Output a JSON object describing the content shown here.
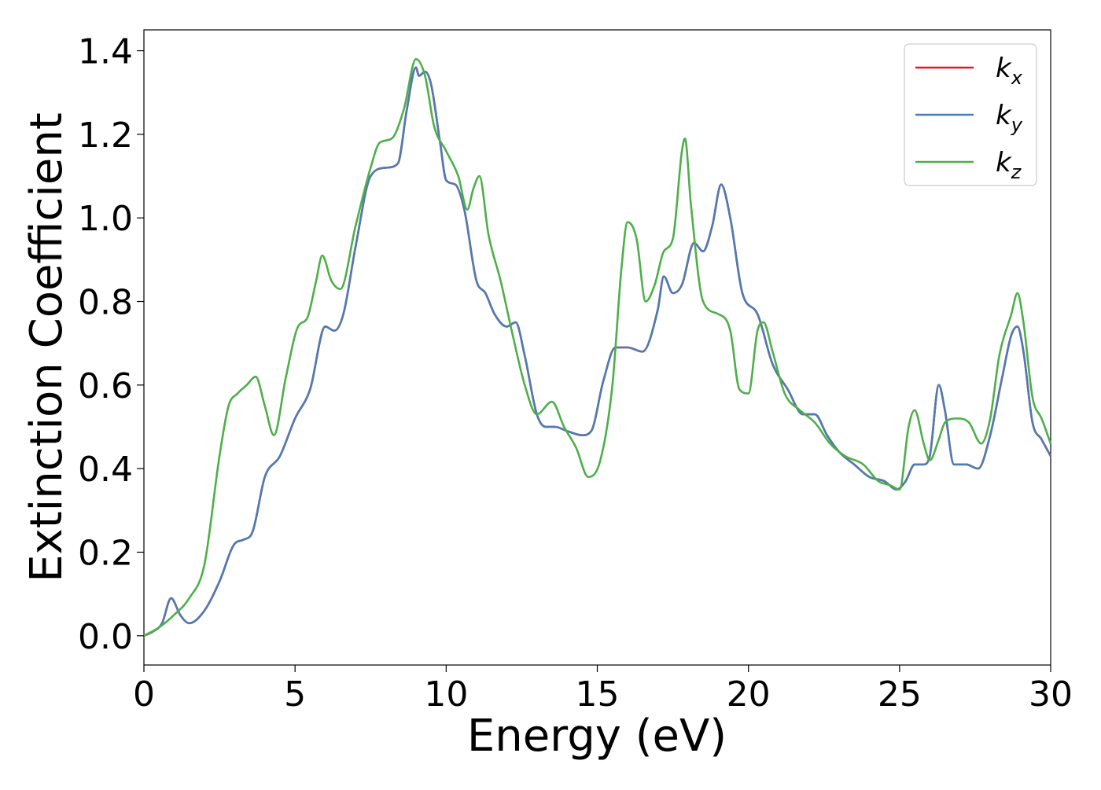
{
  "chart_data": {
    "type": "line",
    "xlabel": "Energy (eV)",
    "ylabel": "Extinction Coefficient",
    "xlim": [
      0,
      30
    ],
    "ylim": [
      -0.07,
      1.45
    ],
    "xticks": [
      0,
      5,
      10,
      15,
      20,
      25,
      30
    ],
    "xtick_labels": [
      "0",
      "5",
      "10",
      "15",
      "20",
      "25",
      "30"
    ],
    "yticks": [
      0.0,
      0.2,
      0.4,
      0.6,
      0.8,
      1.0,
      1.2,
      1.4
    ],
    "ytick_labels": [
      "0.0",
      "0.2",
      "0.4",
      "0.6",
      "0.8",
      "1.0",
      "1.2",
      "1.4"
    ],
    "grid": false,
    "legend_position": "top-right",
    "series": [
      {
        "name": "k_x",
        "legend_base": "k",
        "legend_sub": "x",
        "color": "#e41a1c",
        "x": [
          0,
          0.3,
          0.6,
          0.9,
          1.2,
          1.5,
          2.0,
          2.5,
          3.0,
          3.3,
          3.6,
          4.0,
          4.5,
          5.0,
          5.5,
          6.0,
          6.3,
          6.6,
          7.0,
          7.5,
          8.0,
          8.4,
          8.7,
          9.0,
          9.1,
          9.3,
          9.5,
          9.8,
          10.0,
          10.3,
          10.6,
          11.0,
          11.3,
          11.6,
          12.0,
          12.3,
          12.6,
          13.0,
          13.3,
          13.6,
          14.0,
          14.5,
          14.8,
          15.2,
          15.6,
          16.0,
          16.5,
          17.0,
          17.2,
          17.5,
          17.8,
          18.2,
          18.5,
          18.8,
          19.1,
          19.4,
          19.8,
          20.3,
          20.8,
          21.3,
          21.8,
          22.2,
          22.6,
          23.0,
          23.5,
          24.0,
          24.5,
          24.9,
          25.2,
          25.5,
          25.8,
          26.0,
          26.3,
          26.5,
          26.8,
          27.2,
          27.6,
          28.0,
          28.4,
          28.7,
          28.9,
          29.1,
          29.4,
          29.7,
          30.0
        ],
        "y": [
          0,
          0.01,
          0.03,
          0.09,
          0.05,
          0.03,
          0.06,
          0.13,
          0.22,
          0.23,
          0.25,
          0.38,
          0.43,
          0.52,
          0.59,
          0.74,
          0.73,
          0.77,
          0.93,
          1.1,
          1.12,
          1.13,
          1.26,
          1.36,
          1.34,
          1.35,
          1.32,
          1.18,
          1.09,
          1.08,
          1.02,
          0.85,
          0.82,
          0.77,
          0.74,
          0.75,
          0.67,
          0.53,
          0.5,
          0.5,
          0.49,
          0.48,
          0.49,
          0.61,
          0.69,
          0.69,
          0.68,
          0.78,
          0.86,
          0.82,
          0.84,
          0.94,
          0.92,
          0.98,
          1.08,
          1.0,
          0.82,
          0.77,
          0.65,
          0.59,
          0.53,
          0.53,
          0.48,
          0.44,
          0.41,
          0.38,
          0.37,
          0.35,
          0.37,
          0.41,
          0.41,
          0.43,
          0.6,
          0.54,
          0.41,
          0.41,
          0.4,
          0.48,
          0.62,
          0.72,
          0.74,
          0.68,
          0.51,
          0.47,
          0.43
        ]
      },
      {
        "name": "k_y",
        "legend_base": "k",
        "legend_sub": "y",
        "color": "#4d7bb3",
        "x": [
          0,
          0.3,
          0.6,
          0.9,
          1.2,
          1.5,
          2.0,
          2.5,
          3.0,
          3.3,
          3.6,
          4.0,
          4.5,
          5.0,
          5.5,
          6.0,
          6.3,
          6.6,
          7.0,
          7.5,
          8.0,
          8.4,
          8.7,
          9.0,
          9.1,
          9.3,
          9.5,
          9.8,
          10.0,
          10.3,
          10.6,
          11.0,
          11.3,
          11.6,
          12.0,
          12.3,
          12.6,
          13.0,
          13.3,
          13.6,
          14.0,
          14.5,
          14.8,
          15.2,
          15.6,
          16.0,
          16.5,
          17.0,
          17.2,
          17.5,
          17.8,
          18.2,
          18.5,
          18.8,
          19.1,
          19.4,
          19.8,
          20.3,
          20.8,
          21.3,
          21.8,
          22.2,
          22.6,
          23.0,
          23.5,
          24.0,
          24.5,
          24.9,
          25.2,
          25.5,
          25.8,
          26.0,
          26.3,
          26.5,
          26.8,
          27.2,
          27.6,
          28.0,
          28.4,
          28.7,
          28.9,
          29.1,
          29.4,
          29.7,
          30.0
        ],
        "y": [
          0,
          0.01,
          0.03,
          0.09,
          0.05,
          0.03,
          0.06,
          0.13,
          0.22,
          0.23,
          0.25,
          0.38,
          0.43,
          0.52,
          0.59,
          0.74,
          0.73,
          0.77,
          0.93,
          1.1,
          1.12,
          1.13,
          1.26,
          1.36,
          1.34,
          1.35,
          1.32,
          1.18,
          1.09,
          1.08,
          1.02,
          0.85,
          0.82,
          0.77,
          0.74,
          0.75,
          0.67,
          0.53,
          0.5,
          0.5,
          0.49,
          0.48,
          0.49,
          0.61,
          0.69,
          0.69,
          0.68,
          0.78,
          0.86,
          0.82,
          0.84,
          0.94,
          0.92,
          0.98,
          1.08,
          1.0,
          0.82,
          0.77,
          0.65,
          0.59,
          0.53,
          0.53,
          0.48,
          0.44,
          0.41,
          0.38,
          0.37,
          0.35,
          0.37,
          0.41,
          0.41,
          0.43,
          0.6,
          0.54,
          0.41,
          0.41,
          0.4,
          0.48,
          0.62,
          0.72,
          0.74,
          0.68,
          0.51,
          0.47,
          0.43
        ]
      },
      {
        "name": "k_z",
        "legend_base": "k",
        "legend_sub": "z",
        "color": "#4daf4a",
        "x": [
          0,
          0.5,
          1.0,
          1.5,
          2.0,
          2.5,
          2.8,
          3.1,
          3.4,
          3.7,
          4.0,
          4.3,
          4.7,
          5.1,
          5.4,
          5.7,
          5.9,
          6.2,
          6.5,
          7.0,
          7.5,
          7.8,
          8.2,
          8.6,
          9.0,
          9.3,
          9.6,
          10.0,
          10.4,
          10.7,
          10.9,
          11.1,
          11.4,
          11.8,
          12.2,
          12.6,
          13.0,
          13.5,
          13.9,
          14.3,
          14.7,
          15.1,
          15.5,
          15.8,
          16.0,
          16.3,
          16.6,
          16.9,
          17.2,
          17.5,
          17.8,
          17.9,
          18.1,
          18.5,
          19.0,
          19.4,
          19.7,
          20.0,
          20.3,
          20.5,
          20.8,
          21.2,
          21.7,
          22.2,
          22.7,
          23.2,
          23.8,
          24.3,
          24.7,
          25.0,
          25.3,
          25.5,
          25.8,
          26.0,
          26.3,
          26.5,
          26.9,
          27.3,
          27.7,
          28.0,
          28.3,
          28.7,
          28.9,
          29.1,
          29.4,
          29.7,
          30.0
        ],
        "y": [
          0,
          0.02,
          0.05,
          0.09,
          0.17,
          0.43,
          0.55,
          0.58,
          0.6,
          0.62,
          0.55,
          0.48,
          0.62,
          0.74,
          0.76,
          0.85,
          0.91,
          0.85,
          0.83,
          0.98,
          1.12,
          1.18,
          1.19,
          1.26,
          1.38,
          1.34,
          1.22,
          1.16,
          1.1,
          1.02,
          1.07,
          1.1,
          0.96,
          0.85,
          0.72,
          0.6,
          0.53,
          0.56,
          0.5,
          0.45,
          0.38,
          0.42,
          0.6,
          0.88,
          0.99,
          0.95,
          0.8,
          0.84,
          0.92,
          0.95,
          1.16,
          1.19,
          1.03,
          0.8,
          0.77,
          0.73,
          0.59,
          0.58,
          0.73,
          0.75,
          0.68,
          0.58,
          0.54,
          0.51,
          0.46,
          0.43,
          0.41,
          0.37,
          0.36,
          0.35,
          0.5,
          0.54,
          0.46,
          0.42,
          0.47,
          0.51,
          0.52,
          0.51,
          0.46,
          0.52,
          0.67,
          0.77,
          0.82,
          0.75,
          0.57,
          0.52,
          0.46
        ]
      }
    ]
  }
}
